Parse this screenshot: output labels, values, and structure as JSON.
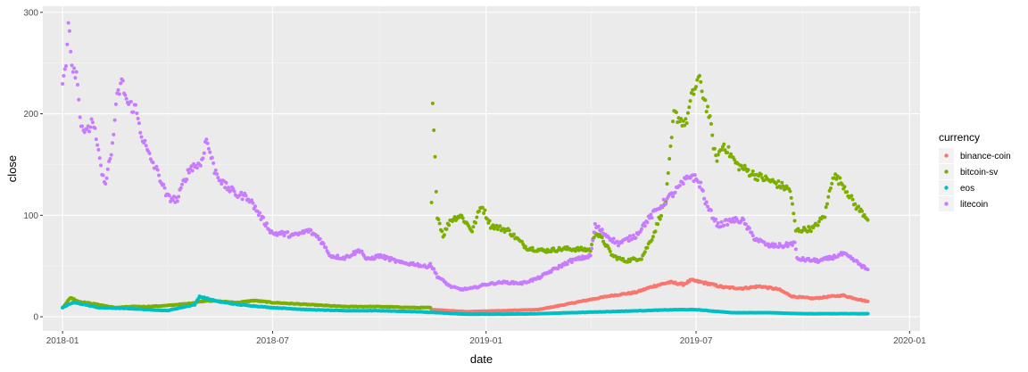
{
  "chart_data": {
    "type": "scatter",
    "xlabel": "date",
    "ylabel": "close",
    "x_ticks": [
      "2018-01",
      "2018-07",
      "2019-01",
      "2019-07",
      "2020-01"
    ],
    "y_ticks": [
      0,
      100,
      200,
      300
    ],
    "xlim": [
      "2017-12-15",
      "2020-01-10"
    ],
    "ylim": [
      -14,
      306
    ],
    "grid": true,
    "legend": {
      "title": "currency",
      "position": "right"
    },
    "series": [
      {
        "name": "binance-coin",
        "color": "#F8766D",
        "anchors": [
          [
            "2018-11-15",
            7
          ],
          [
            "2018-12-15",
            5
          ],
          [
            "2019-01-15",
            6
          ],
          [
            "2019-02-15",
            7
          ],
          [
            "2019-03-10",
            12
          ],
          [
            "2019-04-01",
            17
          ],
          [
            "2019-04-20",
            21
          ],
          [
            "2019-05-10",
            24
          ],
          [
            "2019-05-25",
            30
          ],
          [
            "2019-06-08",
            34
          ],
          [
            "2019-06-20",
            32
          ],
          [
            "2019-06-27",
            36
          ],
          [
            "2019-07-10",
            33
          ],
          [
            "2019-07-25",
            29
          ],
          [
            "2019-08-10",
            28
          ],
          [
            "2019-08-25",
            30
          ],
          [
            "2019-09-10",
            27
          ],
          [
            "2019-09-22",
            20
          ],
          [
            "2019-10-10",
            18
          ],
          [
            "2019-10-25",
            20
          ],
          [
            "2019-11-05",
            21
          ],
          [
            "2019-11-15",
            18
          ],
          [
            "2019-11-26",
            15
          ]
        ]
      },
      {
        "name": "bitcoin-sv",
        "color": "#7CAE00",
        "anchors": [
          [
            "2018-01-01",
            9
          ],
          [
            "2018-01-08",
            19
          ],
          [
            "2018-01-15",
            15
          ],
          [
            "2018-02-01",
            12
          ],
          [
            "2018-02-15",
            9
          ],
          [
            "2018-03-01",
            10
          ],
          [
            "2018-03-15",
            10
          ],
          [
            "2018-04-01",
            11
          ],
          [
            "2018-04-20",
            13
          ],
          [
            "2018-05-05",
            16
          ],
          [
            "2018-06-01",
            14
          ],
          [
            "2018-06-15",
            16
          ],
          [
            "2018-07-01",
            14
          ],
          [
            "2018-08-01",
            12
          ],
          [
            "2018-09-01",
            10
          ],
          [
            "2018-10-01",
            10
          ],
          [
            "2018-11-01",
            9
          ],
          [
            "2018-11-14",
            9
          ],
          [
            "2018-11-15",
            110
          ],
          [
            "2018-11-16",
            208
          ],
          [
            "2018-11-20",
            100
          ],
          [
            "2018-11-25",
            80
          ],
          [
            "2018-12-01",
            95
          ],
          [
            "2018-12-10",
            100
          ],
          [
            "2018-12-20",
            85
          ],
          [
            "2018-12-28",
            110
          ],
          [
            "2019-01-05",
            90
          ],
          [
            "2019-01-20",
            85
          ],
          [
            "2019-02-05",
            68
          ],
          [
            "2019-02-20",
            65
          ],
          [
            "2019-03-10",
            67
          ],
          [
            "2019-04-01",
            66
          ],
          [
            "2019-04-05",
            84
          ],
          [
            "2019-04-12",
            75
          ],
          [
            "2019-04-20",
            60
          ],
          [
            "2019-05-01",
            55
          ],
          [
            "2019-05-15",
            58
          ],
          [
            "2019-05-25",
            80
          ],
          [
            "2019-06-05",
            115
          ],
          [
            "2019-06-12",
            200
          ],
          [
            "2019-06-22",
            190
          ],
          [
            "2019-06-27",
            215
          ],
          [
            "2019-07-03",
            235
          ],
          [
            "2019-07-12",
            200
          ],
          [
            "2019-07-18",
            155
          ],
          [
            "2019-07-25",
            170
          ],
          [
            "2019-08-05",
            150
          ],
          [
            "2019-08-20",
            140
          ],
          [
            "2019-09-05",
            133
          ],
          [
            "2019-09-20",
            125
          ],
          [
            "2019-09-25",
            85
          ],
          [
            "2019-10-10",
            87
          ],
          [
            "2019-10-20",
            100
          ],
          [
            "2019-10-27",
            140
          ],
          [
            "2019-11-05",
            130
          ],
          [
            "2019-11-15",
            110
          ],
          [
            "2019-11-26",
            97
          ]
        ]
      },
      {
        "name": "eos",
        "color": "#00BFC4",
        "anchors": [
          [
            "2018-01-01",
            9
          ],
          [
            "2018-01-10",
            14
          ],
          [
            "2018-01-20",
            12
          ],
          [
            "2018-02-01",
            9
          ],
          [
            "2018-03-01",
            8
          ],
          [
            "2018-04-01",
            6
          ],
          [
            "2018-04-25",
            12
          ],
          [
            "2018-04-29",
            20
          ],
          [
            "2018-05-15",
            15
          ],
          [
            "2018-06-01",
            12
          ],
          [
            "2018-07-01",
            9
          ],
          [
            "2018-08-01",
            7
          ],
          [
            "2018-09-01",
            6
          ],
          [
            "2018-10-01",
            6
          ],
          [
            "2018-11-01",
            5
          ],
          [
            "2018-11-20",
            4
          ],
          [
            "2018-12-15",
            2.5
          ],
          [
            "2019-01-15",
            2.5
          ],
          [
            "2019-02-15",
            3
          ],
          [
            "2019-03-15",
            4
          ],
          [
            "2019-04-15",
            5
          ],
          [
            "2019-05-15",
            6
          ],
          [
            "2019-06-15",
            7
          ],
          [
            "2019-07-01",
            7
          ],
          [
            "2019-08-01",
            4
          ],
          [
            "2019-09-01",
            4
          ],
          [
            "2019-10-01",
            3
          ],
          [
            "2019-11-26",
            3
          ]
        ]
      },
      {
        "name": "litecoin",
        "color": "#C77CFF",
        "anchors": [
          [
            "2018-01-01",
            230
          ],
          [
            "2018-01-04",
            250
          ],
          [
            "2018-01-06",
            297
          ],
          [
            "2018-01-09",
            250
          ],
          [
            "2018-01-13",
            240
          ],
          [
            "2018-01-17",
            190
          ],
          [
            "2018-01-22",
            180
          ],
          [
            "2018-01-27",
            195
          ],
          [
            "2018-02-01",
            160
          ],
          [
            "2018-02-06",
            130
          ],
          [
            "2018-02-12",
            160
          ],
          [
            "2018-02-17",
            215
          ],
          [
            "2018-02-21",
            232
          ],
          [
            "2018-02-26",
            210
          ],
          [
            "2018-03-05",
            205
          ],
          [
            "2018-03-10",
            180
          ],
          [
            "2018-03-16",
            160
          ],
          [
            "2018-03-25",
            140
          ],
          [
            "2018-04-01",
            118
          ],
          [
            "2018-04-10",
            115
          ],
          [
            "2018-04-16",
            135
          ],
          [
            "2018-04-22",
            148
          ],
          [
            "2018-04-30",
            150
          ],
          [
            "2018-05-05",
            175
          ],
          [
            "2018-05-12",
            145
          ],
          [
            "2018-05-20",
            130
          ],
          [
            "2018-06-01",
            120
          ],
          [
            "2018-06-10",
            118
          ],
          [
            "2018-06-20",
            100
          ],
          [
            "2018-07-01",
            82
          ],
          [
            "2018-07-10",
            82
          ],
          [
            "2018-07-20",
            80
          ],
          [
            "2018-08-01",
            85
          ],
          [
            "2018-08-10",
            78
          ],
          [
            "2018-08-20",
            60
          ],
          [
            "2018-09-01",
            58
          ],
          [
            "2018-09-15",
            66
          ],
          [
            "2018-09-20",
            56
          ],
          [
            "2018-10-01",
            60
          ],
          [
            "2018-10-10",
            57
          ],
          [
            "2018-10-20",
            53
          ],
          [
            "2018-11-01",
            52
          ],
          [
            "2018-11-10",
            49
          ],
          [
            "2018-11-14",
            52
          ],
          [
            "2018-11-20",
            40
          ],
          [
            "2018-12-01",
            30
          ],
          [
            "2018-12-10",
            27
          ],
          [
            "2018-12-20",
            28
          ],
          [
            "2019-01-01",
            32
          ],
          [
            "2019-01-15",
            34
          ],
          [
            "2019-02-01",
            33
          ],
          [
            "2019-02-15",
            38
          ],
          [
            "2019-03-01",
            47
          ],
          [
            "2019-03-15",
            55
          ],
          [
            "2019-04-01",
            60
          ],
          [
            "2019-04-05",
            90
          ],
          [
            "2019-04-15",
            80
          ],
          [
            "2019-04-25",
            72
          ],
          [
            "2019-05-10",
            80
          ],
          [
            "2019-05-20",
            95
          ],
          [
            "2019-06-01",
            110
          ],
          [
            "2019-06-10",
            120
          ],
          [
            "2019-06-20",
            132
          ],
          [
            "2019-06-27",
            140
          ],
          [
            "2019-07-05",
            130
          ],
          [
            "2019-07-10",
            110
          ],
          [
            "2019-07-20",
            90
          ],
          [
            "2019-08-01",
            95
          ],
          [
            "2019-08-10",
            95
          ],
          [
            "2019-08-20",
            78
          ],
          [
            "2019-09-01",
            70
          ],
          [
            "2019-09-15",
            70
          ],
          [
            "2019-09-24",
            73
          ],
          [
            "2019-09-26",
            57
          ],
          [
            "2019-10-15",
            55
          ],
          [
            "2019-10-25",
            58
          ],
          [
            "2019-11-05",
            62
          ],
          [
            "2019-11-15",
            55
          ],
          [
            "2019-11-26",
            46
          ]
        ]
      }
    ]
  }
}
